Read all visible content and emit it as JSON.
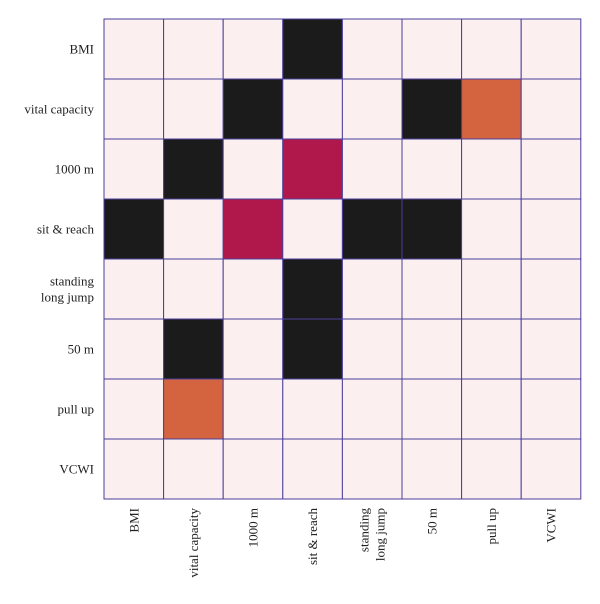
{
  "chart_data": {
    "type": "heatmap",
    "rows": [
      "BMI",
      "vital capacity",
      "1000 m",
      "sit & reach",
      "standing long jump",
      "50 m",
      "pull up",
      "VCWI"
    ],
    "columns": [
      "BMI",
      "vital capacity",
      "1000 m",
      "sit & reach",
      "standing long jump",
      "50 m",
      "pull up",
      "VCWI"
    ],
    "row_tick_lines": [
      [
        "BMI"
      ],
      [
        "vital capacity"
      ],
      [
        "1000 m"
      ],
      [
        "sit & reach"
      ],
      [
        "standing",
        "long jump"
      ],
      [
        "50 m"
      ],
      [
        "pull up"
      ],
      [
        "VCWI"
      ]
    ],
    "column_tick_lines": [
      [
        "BMI"
      ],
      [
        "vital capacity"
      ],
      [
        "1000 m"
      ],
      [
        "sit & reach"
      ],
      [
        "standing",
        "long jump"
      ],
      [
        "50 m"
      ],
      [
        "pull up"
      ],
      [
        "VCWI"
      ]
    ],
    "values": [
      [
        0,
        0,
        0,
        3,
        0,
        0,
        0,
        0
      ],
      [
        0,
        0,
        3,
        0,
        0,
        3,
        1,
        0
      ],
      [
        0,
        3,
        0,
        2,
        0,
        0,
        0,
        0
      ],
      [
        3,
        0,
        2,
        0,
        3,
        3,
        0,
        0
      ],
      [
        0,
        0,
        0,
        3,
        0,
        0,
        0,
        0
      ],
      [
        0,
        3,
        0,
        3,
        0,
        0,
        0,
        0
      ],
      [
        0,
        1,
        0,
        0,
        0,
        0,
        0,
        0
      ],
      [
        0,
        0,
        0,
        0,
        0,
        0,
        0,
        0
      ]
    ],
    "colors": {
      "0": "#fbeff0",
      "1": "#d3643f",
      "2": "#b0174a",
      "3": "#1b1b1b"
    },
    "grid_color": "#4b3f9c",
    "grid": true
  }
}
